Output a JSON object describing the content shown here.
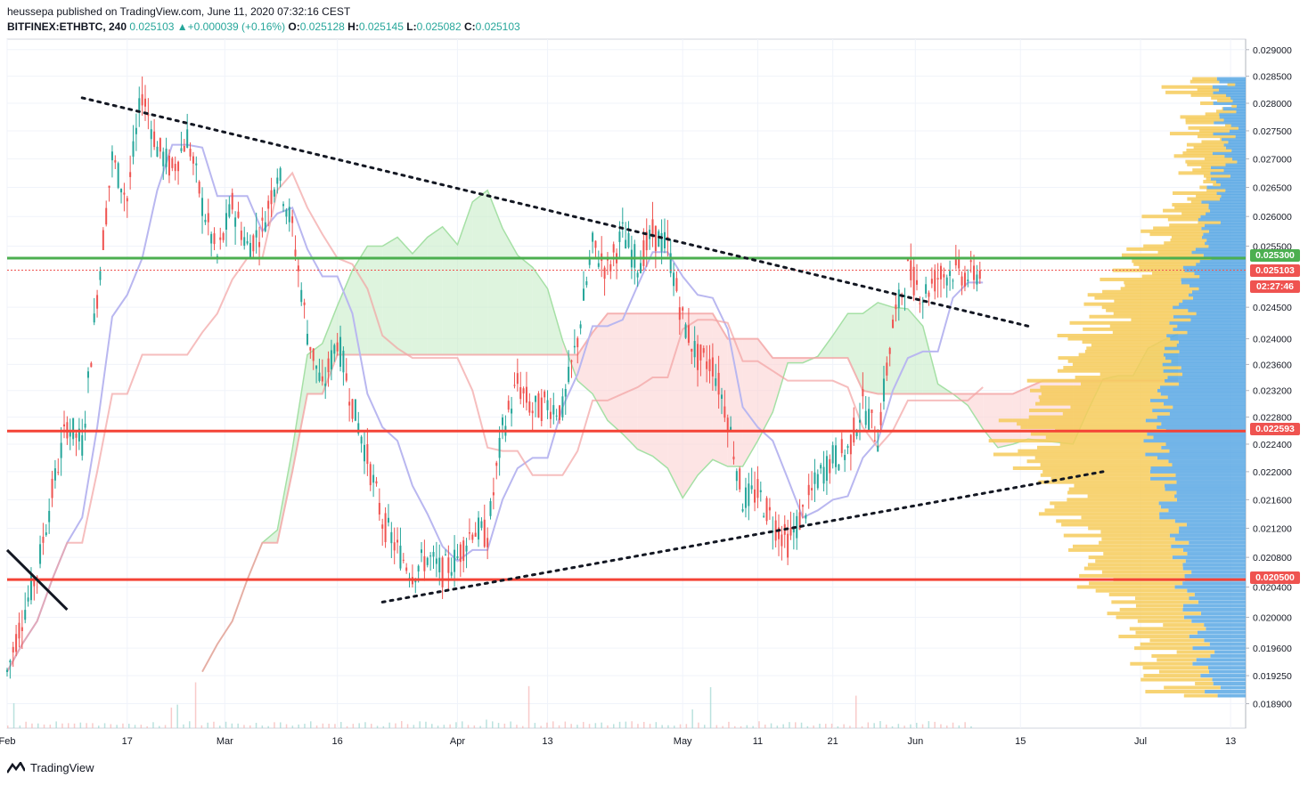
{
  "header": {
    "publisher": "heussepa published on TradingView.com, June 11, 2020 07:32:16 CEST",
    "symbol": "BITFINEX:ETHBTC, 240",
    "last": "0.025103",
    "change": "▲+0.000039 (+0.16%)",
    "o_label": "O:",
    "o_value": "0.025128",
    "h_label": "H:",
    "h_value": "0.025145",
    "l_label": "L:",
    "l_value": "0.025082",
    "c_label": "C:",
    "c_value": "0.025103"
  },
  "footer": {
    "brand": "TradingView"
  },
  "colors": {
    "up": "#26a69a",
    "down": "#ef5350",
    "green_line": "#4caf50",
    "red_line": "#f44336",
    "kumo_green": "#c8ecc8",
    "kumo_red": "#fcd2d2",
    "tenkan": "#b9b7f0",
    "kijun": "#f2a3a3",
    "vp_up": "#5aa8e4",
    "vp_down": "#f6cb5a",
    "price_label_red": "#ef5350",
    "price_label_green": "#4caf50"
  },
  "price_labels": [
    {
      "text": "0.025300",
      "color": "#4caf50"
    },
    {
      "text": "0.025103",
      "color": "#ef5350"
    },
    {
      "text": "02:27:46",
      "color": "#ef5350"
    },
    {
      "text": "0.022593",
      "color": "#ef5350"
    },
    {
      "text": "0.020500",
      "color": "#ef5350"
    }
  ],
  "chart_data": {
    "type": "line",
    "title": "",
    "y_axis_scale": "log",
    "y_ticks": [
      "0.029000",
      "0.028500",
      "0.028000",
      "0.027500",
      "0.027000",
      "0.026500",
      "0.026000",
      "0.025500",
      "0.024500",
      "0.024000",
      "0.023600",
      "0.023200",
      "0.022800",
      "0.022400",
      "0.022000",
      "0.021600",
      "0.021200",
      "0.020800",
      "0.020400",
      "0.020000",
      "0.019600",
      "0.019250",
      "0.018900"
    ],
    "x_ticks": [
      "Feb",
      "17",
      "Mar",
      "16",
      "Apr",
      "13",
      "May",
      "11",
      "21",
      "Jun",
      "15",
      "Jul",
      "13"
    ],
    "ylim": [
      0.0186,
      0.0292
    ],
    "xlim": [
      "2020-02-01",
      "2020-07-15"
    ],
    "horizontal_levels": [
      {
        "value": 0.0253,
        "color": "#4caf50"
      },
      {
        "value": 0.022593,
        "color": "#f44336"
      },
      {
        "value": 0.0205,
        "color": "#f44336"
      }
    ],
    "last_price": 0.025103,
    "trendlines": [
      {
        "style": "dotted",
        "from": [
          "2020-02-11",
          0.0281
        ],
        "to": [
          "2020-06-16",
          0.0242
        ]
      },
      {
        "style": "dotted",
        "from": [
          "2020-03-22",
          0.0202
        ],
        "to": [
          "2020-06-26",
          0.022
        ]
      },
      {
        "style": "solid",
        "from": [
          "2020-02-01",
          0.0209
        ],
        "to": [
          "2020-02-09",
          0.0201
        ]
      }
    ],
    "price_path": [
      [
        "2020-02-01",
        0.0193
      ],
      [
        "2020-02-03",
        0.02
      ],
      [
        "2020-02-05",
        0.0206
      ],
      [
        "2020-02-07",
        0.0217
      ],
      [
        "2020-02-09",
        0.0227
      ],
      [
        "2020-02-11",
        0.0224
      ],
      [
        "2020-02-13",
        0.0247
      ],
      [
        "2020-02-15",
        0.027
      ],
      [
        "2020-02-17",
        0.0263
      ],
      [
        "2020-02-19",
        0.0282
      ],
      [
        "2020-02-21",
        0.0272
      ],
      [
        "2020-02-23",
        0.0268
      ],
      [
        "2020-02-25",
        0.0274
      ],
      [
        "2020-02-27",
        0.0262
      ],
      [
        "2020-02-29",
        0.0253
      ],
      [
        "2020-03-02",
        0.0262
      ],
      [
        "2020-03-04",
        0.0255
      ],
      [
        "2020-03-06",
        0.0258
      ],
      [
        "2020-03-08",
        0.0268
      ],
      [
        "2020-03-10",
        0.0258
      ],
      [
        "2020-03-12",
        0.0241
      ],
      [
        "2020-03-14",
        0.0232
      ],
      [
        "2020-03-16",
        0.024
      ],
      [
        "2020-03-18",
        0.023
      ],
      [
        "2020-03-20",
        0.0222
      ],
      [
        "2020-03-22",
        0.0213
      ],
      [
        "2020-03-24",
        0.0209
      ],
      [
        "2020-03-26",
        0.0206
      ],
      [
        "2020-03-28",
        0.0208
      ],
      [
        "2020-03-30",
        0.0206
      ],
      [
        "2020-04-01",
        0.0208
      ],
      [
        "2020-04-03",
        0.0212
      ],
      [
        "2020-04-05",
        0.0211
      ],
      [
        "2020-04-07",
        0.0226
      ],
      [
        "2020-04-09",
        0.0233
      ],
      [
        "2020-04-11",
        0.0229
      ],
      [
        "2020-04-13",
        0.023
      ],
      [
        "2020-04-15",
        0.0229
      ],
      [
        "2020-04-17",
        0.024
      ],
      [
        "2020-04-19",
        0.0255
      ],
      [
        "2020-04-21",
        0.0251
      ],
      [
        "2020-04-23",
        0.0257
      ],
      [
        "2020-04-25",
        0.0252
      ],
      [
        "2020-04-27",
        0.0257
      ],
      [
        "2020-04-29",
        0.0255
      ],
      [
        "2020-05-01",
        0.0243
      ],
      [
        "2020-05-03",
        0.0237
      ],
      [
        "2020-05-05",
        0.0236
      ],
      [
        "2020-05-07",
        0.0228
      ],
      [
        "2020-05-09",
        0.0216
      ],
      [
        "2020-05-11",
        0.0217
      ],
      [
        "2020-05-13",
        0.0213
      ],
      [
        "2020-05-15",
        0.021
      ],
      [
        "2020-05-17",
        0.0214
      ],
      [
        "2020-05-19",
        0.0219
      ],
      [
        "2020-05-21",
        0.0222
      ],
      [
        "2020-05-23",
        0.0223
      ],
      [
        "2020-05-25",
        0.023
      ],
      [
        "2020-05-27",
        0.0225
      ],
      [
        "2020-05-29",
        0.0242
      ],
      [
        "2020-05-31",
        0.0251
      ],
      [
        "2020-06-02",
        0.0247
      ],
      [
        "2020-06-04",
        0.025
      ],
      [
        "2020-06-06",
        0.0251
      ],
      [
        "2020-06-08",
        0.025
      ],
      [
        "2020-06-10",
        0.0251
      ]
    ]
  }
}
